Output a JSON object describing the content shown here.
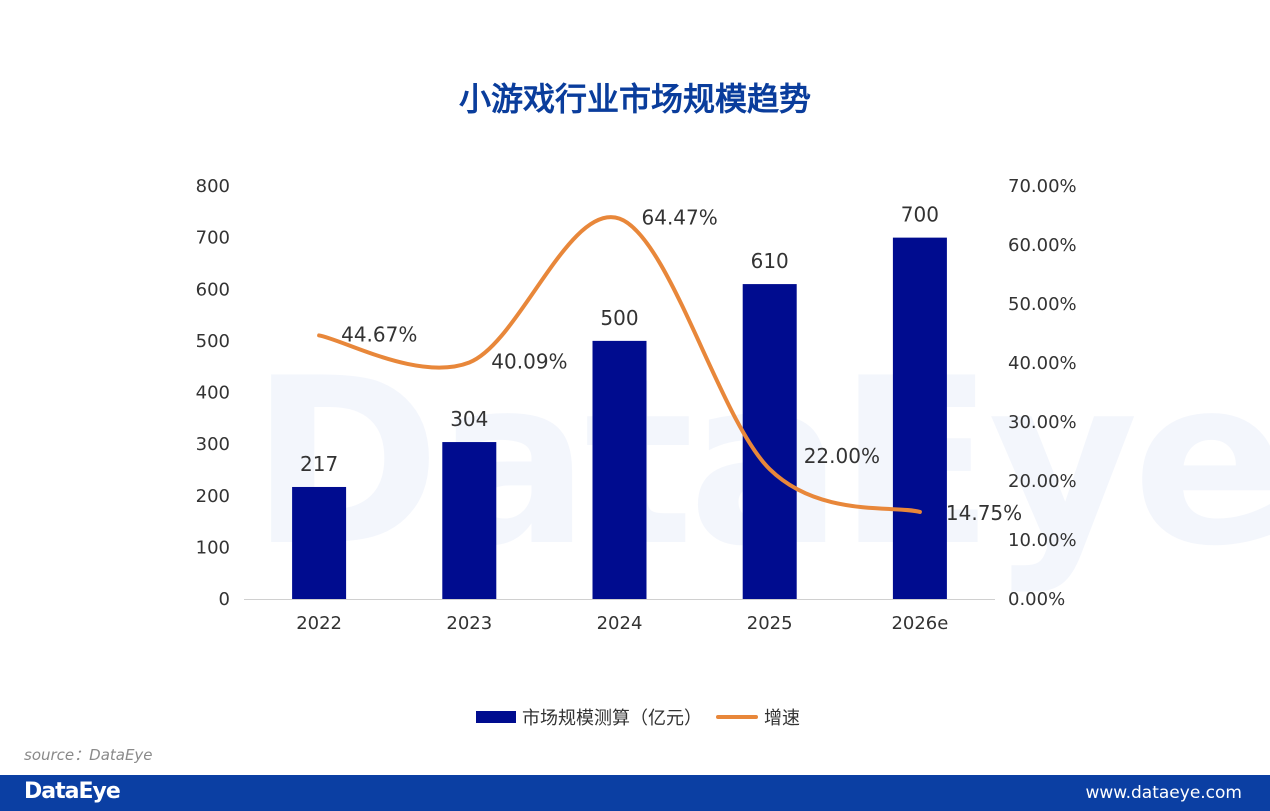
{
  "watermark": "DataEye",
  "title": "小游戏行业市场规模趋势",
  "chart_data": {
    "type": "bar",
    "categories": [
      "2022",
      "2023",
      "2024",
      "2025",
      "2026e"
    ],
    "series": [
      {
        "name": "市场规模测算（亿元）",
        "type": "bar",
        "axis": "left",
        "values": [
          217,
          304,
          500,
          610,
          700
        ],
        "color": "#000c8f"
      },
      {
        "name": "增速",
        "type": "line",
        "axis": "right",
        "values": [
          44.67,
          40.09,
          64.47,
          22.0,
          14.75
        ],
        "color": "#e8873a"
      }
    ],
    "bar_labels": [
      "217",
      "304",
      "500",
      "610",
      "700"
    ],
    "line_labels": [
      "44.67%",
      "40.09%",
      "64.47%",
      "22.00%",
      "14.75%"
    ],
    "y_left": {
      "min": 0,
      "max": 800,
      "step": 100,
      "ticks": [
        "0",
        "100",
        "200",
        "300",
        "400",
        "500",
        "600",
        "700",
        "800"
      ]
    },
    "y_right": {
      "min": 0,
      "max": 70,
      "step": 10,
      "ticks": [
        "0.00%",
        "10.00%",
        "20.00%",
        "30.00%",
        "40.00%",
        "50.00%",
        "60.00%",
        "70.00%"
      ]
    },
    "legend_position": "bottom",
    "grid": false
  },
  "legend": {
    "bar_label": "市场规模测算（亿元）",
    "line_label": "增速"
  },
  "source": "source：DataEye",
  "footer": {
    "logo": "DataEye",
    "url": "www.dataeye.com"
  }
}
